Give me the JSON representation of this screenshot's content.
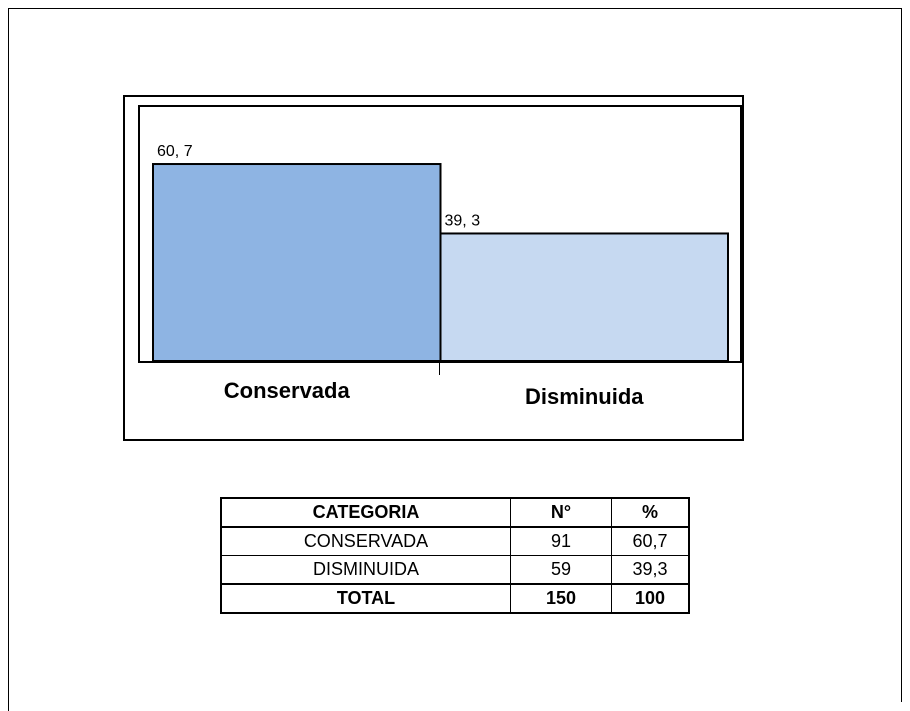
{
  "chart_data": {
    "type": "bar",
    "categories": [
      "Conservada",
      "Disminuida"
    ],
    "values": [
      60.7,
      39.3
    ],
    "value_labels": [
      "60, 7",
      "39, 3"
    ],
    "colors": [
      "#8eb4e3",
      "#c6d9f1"
    ]
  },
  "table": {
    "header": [
      "CATEGORIA",
      "N°",
      "%"
    ],
    "rows": [
      [
        "CONSERVADA",
        "91",
        "60,7"
      ],
      [
        "DISMINUIDA",
        "59",
        "39,3"
      ],
      [
        "TOTAL",
        "150",
        "100"
      ]
    ]
  }
}
